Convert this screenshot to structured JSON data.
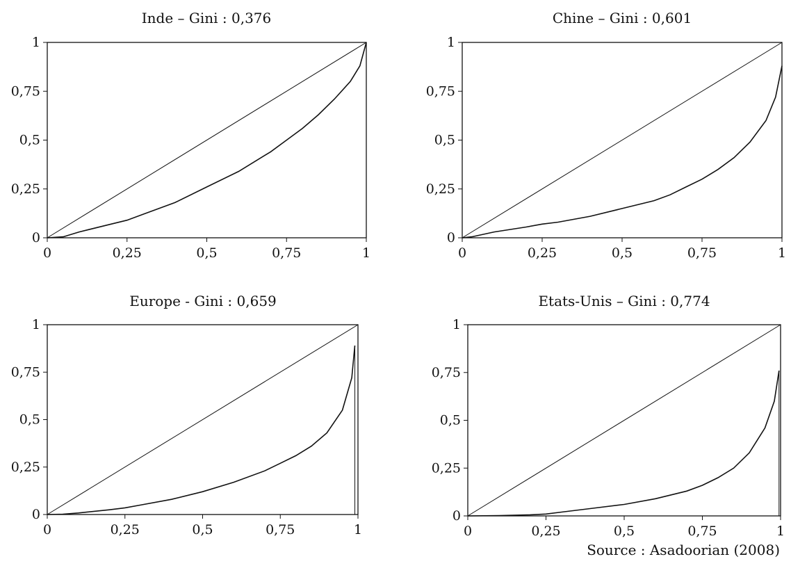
{
  "source": "Source : Asadoorian (2008)",
  "chart_data": [
    {
      "type": "line",
      "title": "Inde – Gini : 0,376",
      "xlim": [
        0,
        1
      ],
      "ylim": [
        0,
        1
      ],
      "x_ticks": [
        "0",
        "0,25",
        "0,5",
        "0,75",
        "1"
      ],
      "y_ticks": [
        "0",
        "0,25",
        "0,5",
        "0,75",
        "1"
      ],
      "series": [
        {
          "x": [
            0,
            1
          ],
          "y": [
            0,
            1
          ]
        },
        {
          "x": [
            0,
            0.05,
            0.1,
            0.2,
            0.25,
            0.3,
            0.4,
            0.5,
            0.6,
            0.7,
            0.75,
            0.8,
            0.85,
            0.9,
            0.95,
            0.98,
            1.0
          ],
          "y": [
            0,
            0.005,
            0.03,
            0.07,
            0.09,
            0.12,
            0.18,
            0.26,
            0.34,
            0.44,
            0.5,
            0.56,
            0.63,
            0.71,
            0.8,
            0.88,
            1.0
          ]
        }
      ]
    },
    {
      "type": "line",
      "title": "Chine – Gini : 0,601",
      "xlim": [
        0,
        1
      ],
      "ylim": [
        0,
        1
      ],
      "x_ticks": [
        "0",
        "0,25",
        "0,5",
        "0,75",
        "1"
      ],
      "y_ticks": [
        "0",
        "0,25",
        "0,5",
        "0,75",
        "1"
      ],
      "series": [
        {
          "x": [
            0,
            1
          ],
          "y": [
            0,
            1
          ]
        },
        {
          "x": [
            0,
            0.03,
            0.1,
            0.2,
            0.25,
            0.3,
            0.4,
            0.5,
            0.6,
            0.65,
            0.7,
            0.75,
            0.8,
            0.85,
            0.9,
            0.95,
            0.98,
            1.0
          ],
          "y": [
            0,
            0.005,
            0.03,
            0.055,
            0.07,
            0.08,
            0.11,
            0.15,
            0.19,
            0.22,
            0.26,
            0.3,
            0.35,
            0.41,
            0.49,
            0.6,
            0.72,
            0.88
          ]
        }
      ]
    },
    {
      "type": "line",
      "title": "Europe - Gini : 0,659",
      "xlim": [
        0,
        1
      ],
      "ylim": [
        0,
        1
      ],
      "x_ticks": [
        "0",
        "0,25",
        "0,5",
        "0,75",
        "1"
      ],
      "y_ticks": [
        "0",
        "0,25",
        "0,5",
        "0,75",
        "1"
      ],
      "series": [
        {
          "x": [
            0,
            1
          ],
          "y": [
            0,
            1
          ]
        },
        {
          "x": [
            0,
            0.05,
            0.1,
            0.2,
            0.25,
            0.3,
            0.4,
            0.5,
            0.6,
            0.7,
            0.75,
            0.8,
            0.85,
            0.9,
            0.95,
            0.98,
            0.99
          ],
          "y": [
            0,
            0.002,
            0.008,
            0.025,
            0.035,
            0.05,
            0.08,
            0.12,
            0.17,
            0.23,
            0.27,
            0.31,
            0.36,
            0.43,
            0.55,
            0.72,
            0.89
          ]
        }
      ]
    },
    {
      "type": "line",
      "title": "Etats-Unis – Gini : 0,774",
      "xlim": [
        0,
        1
      ],
      "ylim": [
        0,
        1
      ],
      "x_ticks": [
        "0",
        "0,25",
        "0,5",
        "0,75",
        "1"
      ],
      "y_ticks": [
        "0",
        "0,25",
        "0,5",
        "0,75",
        "1"
      ],
      "series": [
        {
          "x": [
            0,
            1
          ],
          "y": [
            0,
            1
          ]
        },
        {
          "x": [
            0,
            0.1,
            0.2,
            0.25,
            0.3,
            0.4,
            0.5,
            0.6,
            0.7,
            0.75,
            0.8,
            0.85,
            0.9,
            0.95,
            0.98,
            0.995
          ],
          "y": [
            0,
            0.002,
            0.006,
            0.01,
            0.02,
            0.04,
            0.06,
            0.09,
            0.13,
            0.16,
            0.2,
            0.25,
            0.33,
            0.46,
            0.6,
            0.76
          ]
        }
      ]
    }
  ]
}
